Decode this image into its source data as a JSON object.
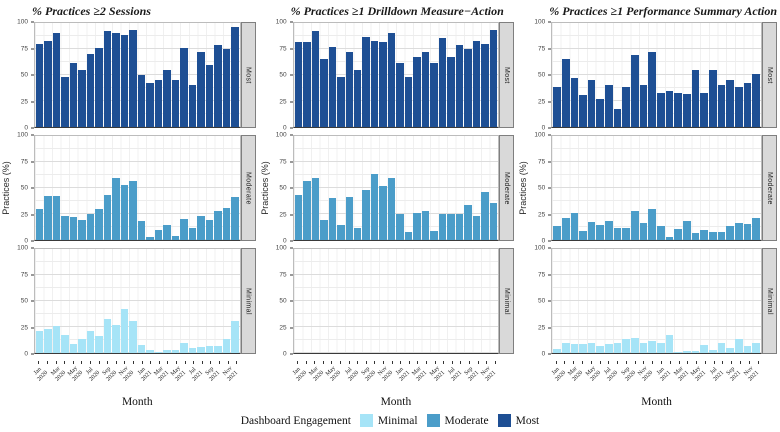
{
  "figure": {
    "xlabel": "Month",
    "ylabel": "Practices (%)",
    "y_ticks": [
      100,
      75,
      50,
      25,
      0
    ],
    "colors": {
      "minimal": "#a6e4f7",
      "moderate": "#4b9dc9",
      "most": "#1e4f94"
    }
  },
  "legend": {
    "title": "Dashboard Engagement",
    "items": [
      {
        "label": "Minimal",
        "color": "#a6e4f7"
      },
      {
        "label": "Moderate",
        "color": "#4b9dc9"
      },
      {
        "label": "Most",
        "color": "#1e4f94"
      }
    ]
  },
  "chart_data": [
    {
      "type": "bar",
      "title": "% Practices ≥2 Sessions",
      "xlabel": "Month",
      "ylabel": "Practices (%)",
      "ylim": [
        0,
        100
      ],
      "grid": true,
      "x_tick_step": 2,
      "categories": [
        "Jan 2020",
        "Feb 2020",
        "Mar 2020",
        "Apr 2020",
        "May 2020",
        "Jun 2020",
        "Jul 2020",
        "Aug 2020",
        "Sep 2020",
        "Oct 2020",
        "Nov 2020",
        "Dec 2020",
        "Jan 2021",
        "Feb 2021",
        "Mar 2021",
        "Apr 2021",
        "May 2021",
        "Jun 2021",
        "Jul 2021",
        "Aug 2021",
        "Sep 2021",
        "Oct 2021",
        "Nov 2021",
        "Dec 2021"
      ],
      "facets": [
        {
          "name": "Most",
          "color": "#1e4f94",
          "values": [
            80,
            83,
            90,
            48,
            62,
            55,
            70,
            76,
            92,
            90,
            88,
            93,
            50,
            42,
            45,
            55,
            45,
            76,
            40,
            72,
            60,
            79,
            75,
            96
          ]
        },
        {
          "name": "Moderate",
          "color": "#4b9dc9",
          "values": [
            30,
            42,
            42,
            23,
            22,
            19,
            25,
            30,
            43,
            60,
            53,
            57,
            18,
            3,
            10,
            14,
            4,
            20,
            12,
            23,
            19,
            28,
            31,
            41
          ]
        },
        {
          "name": "Minimal",
          "color": "#a6e4f7",
          "values": [
            21,
            23,
            26,
            17,
            9,
            13,
            21,
            16,
            33,
            27,
            42,
            31,
            8,
            3,
            1,
            3,
            3,
            10,
            5,
            6,
            7,
            7,
            13,
            31
          ]
        }
      ]
    },
    {
      "type": "bar",
      "title": "% Practices ≥1 Drilldown Measure−Action",
      "xlabel": "Month",
      "ylabel": "Practices (%)",
      "ylim": [
        0,
        100
      ],
      "grid": true,
      "x_tick_step": 2,
      "categories": [
        "Jan 2020",
        "Feb 2020",
        "Mar 2020",
        "Apr 2020",
        "May 2020",
        "Jun 2020",
        "Jul 2020",
        "Aug 2020",
        "Sep 2020",
        "Oct 2020",
        "Nov 2020",
        "Dec 2020",
        "Jan 2021",
        "Feb 2021",
        "Mar 2021",
        "Apr 2021",
        "May 2021",
        "Jun 2021",
        "Jul 2021",
        "Aug 2021",
        "Sep 2021",
        "Oct 2021",
        "Nov 2021",
        "Dec 2021"
      ],
      "facets": [
        {
          "name": "Most",
          "color": "#1e4f94",
          "values": [
            82,
            82,
            92,
            65,
            77,
            48,
            72,
            55,
            87,
            83,
            82,
            90,
            62,
            48,
            67,
            72,
            62,
            86,
            67,
            79,
            75,
            83,
            80,
            93
          ]
        },
        {
          "name": "Moderate",
          "color": "#4b9dc9",
          "values": [
            43,
            57,
            60,
            19,
            40,
            14,
            41,
            12,
            48,
            63,
            52,
            60,
            25,
            8,
            26,
            28,
            9,
            25,
            25,
            25,
            34,
            23,
            46,
            36
          ]
        },
        {
          "name": "Minimal",
          "color": "#a6e4f7",
          "values": [
            0,
            0,
            0,
            0,
            0,
            0,
            0,
            0,
            0,
            0,
            0,
            0,
            0,
            0,
            0,
            0,
            0,
            0,
            0,
            0,
            0,
            0,
            0,
            0
          ]
        }
      ]
    },
    {
      "type": "bar",
      "title": "% Practices ≥1 Performance Summary Action",
      "xlabel": "Month",
      "ylabel": "Practices (%)",
      "ylim": [
        0,
        100
      ],
      "grid": true,
      "x_tick_step": 2,
      "categories": [
        "Jan 2020",
        "Feb 2020",
        "Mar 2020",
        "Apr 2020",
        "May 2020",
        "Jun 2020",
        "Jul 2020",
        "Aug 2020",
        "Sep 2020",
        "Oct 2020",
        "Nov 2020",
        "Dec 2020",
        "Jan 2021",
        "Feb 2021",
        "Mar 2021",
        "Apr 2021",
        "May 2021",
        "Jun 2021",
        "Jul 2021",
        "Aug 2021",
        "Sep 2021",
        "Oct 2021",
        "Nov 2021",
        "Dec 2021"
      ],
      "facets": [
        {
          "name": "Most",
          "color": "#1e4f94",
          "values": [
            38,
            65,
            47,
            31,
            45,
            27,
            40,
            17,
            38,
            69,
            40,
            72,
            33,
            35,
            33,
            32,
            55,
            33,
            55,
            40,
            45,
            38,
            42,
            51
          ]
        },
        {
          "name": "Moderate",
          "color": "#4b9dc9",
          "values": [
            13,
            21,
            26,
            9,
            17,
            14,
            18,
            12,
            12,
            28,
            16,
            30,
            13,
            3,
            11,
            18,
            7,
            10,
            8,
            8,
            13,
            16,
            15,
            21
          ]
        },
        {
          "name": "Minimal",
          "color": "#a6e4f7",
          "values": [
            4,
            10,
            9,
            9,
            10,
            7,
            9,
            10,
            13,
            14,
            10,
            12,
            10,
            17,
            1,
            2,
            2,
            8,
            3,
            10,
            5,
            13,
            7,
            10
          ]
        }
      ]
    }
  ]
}
